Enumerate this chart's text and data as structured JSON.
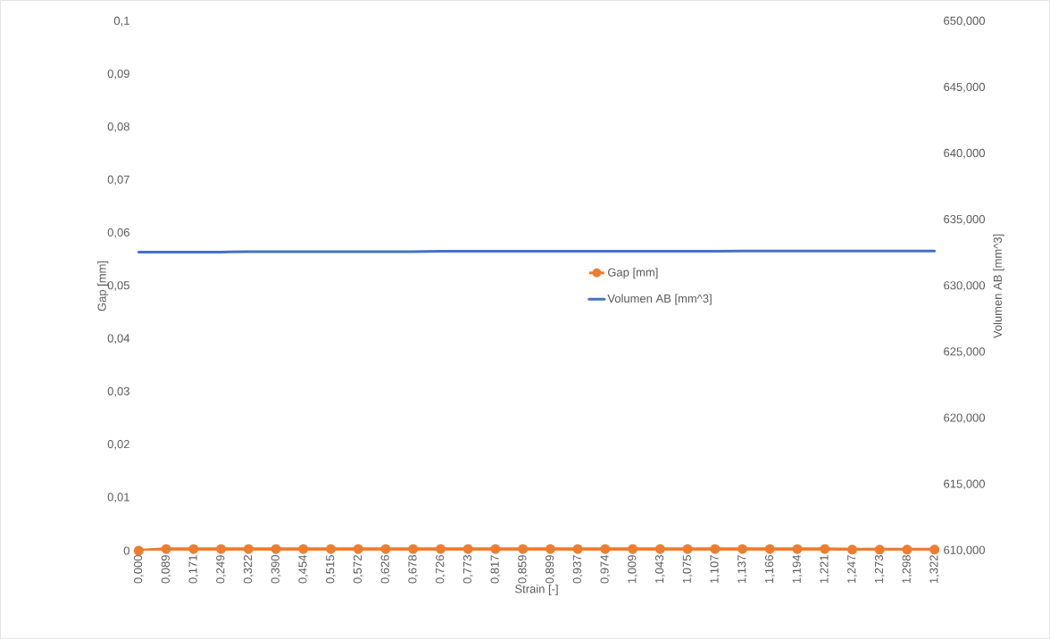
{
  "chart_data": {
    "type": "line",
    "xlabel": "Strain [-]",
    "ylabel": "Gap [mm]",
    "y2label": "Volumen AB [mm^3]",
    "categories": [
      "0,000",
      "0,089",
      "0,171",
      "0,249",
      "0,322",
      "0,390",
      "0,454",
      "0,515",
      "0,572",
      "0,626",
      "0,678",
      "0,726",
      "0,773",
      "0,817",
      "0,859",
      "0,899",
      "0,937",
      "0,974",
      "1,009",
      "1,043",
      "1,075",
      "1,107",
      "1,137",
      "1,166",
      "1,194",
      "1,221",
      "1,247",
      "1,273",
      "1,298",
      "1,322"
    ],
    "series": [
      {
        "name": "Gap [mm]",
        "color": "#ed7d31",
        "marker": "circle",
        "values": [
          0,
          0.0003,
          0.0003,
          0.0003,
          0.0003,
          0.0003,
          0.0003,
          0.0003,
          0.0003,
          0.0003,
          0.0003,
          0.0003,
          0.0003,
          0.0003,
          0.0003,
          0.0003,
          0.0003,
          0.0003,
          0.0003,
          0.0003,
          0.0003,
          0.0003,
          0.0003,
          0.0003,
          0.0003,
          0.0003,
          0.0002,
          0.0002,
          0.0002,
          0.0002
        ]
      },
      {
        "name": "Volumen AB [mm^3]",
        "color": "#4472c4",
        "marker": "none",
        "axis": "y2",
        "values": [
          632.57,
          632.57,
          632.57,
          632.57,
          632.6,
          632.6,
          632.6,
          632.6,
          632.6,
          632.6,
          632.6,
          632.63,
          632.63,
          632.63,
          632.63,
          632.63,
          632.63,
          632.63,
          632.63,
          632.63,
          632.63,
          632.63,
          632.65,
          632.65,
          632.65,
          632.65,
          632.65,
          632.65,
          632.65,
          632.65
        ]
      }
    ],
    "ylim": [
      0,
      0.1
    ],
    "yticks": [
      {
        "value": 0,
        "label": "0"
      },
      {
        "value": 0.01,
        "label": "0,01"
      },
      {
        "value": 0.02,
        "label": "0,02"
      },
      {
        "value": 0.03,
        "label": "0,03"
      },
      {
        "value": 0.04,
        "label": "0,04"
      },
      {
        "value": 0.05,
        "label": "0,05"
      },
      {
        "value": 0.06,
        "label": "0,06"
      },
      {
        "value": 0.07,
        "label": "0,07"
      },
      {
        "value": 0.08,
        "label": "0,08"
      },
      {
        "value": 0.09,
        "label": "0,09"
      },
      {
        "value": 0.1,
        "label": "0,1"
      }
    ],
    "y2lim": [
      610,
      650
    ],
    "y2ticks": [
      {
        "value": 610,
        "label": "610,000"
      },
      {
        "value": 615,
        "label": "615,000"
      },
      {
        "value": 620,
        "label": "620,000"
      },
      {
        "value": 625,
        "label": "625,000"
      },
      {
        "value": 630,
        "label": "630,000"
      },
      {
        "value": 635,
        "label": "635,000"
      },
      {
        "value": 640,
        "label": "640,000"
      },
      {
        "value": 645,
        "label": "645,000"
      },
      {
        "value": 650,
        "label": "650,000"
      }
    ],
    "legend": "center",
    "grid": false,
    "line_style": "solid"
  }
}
